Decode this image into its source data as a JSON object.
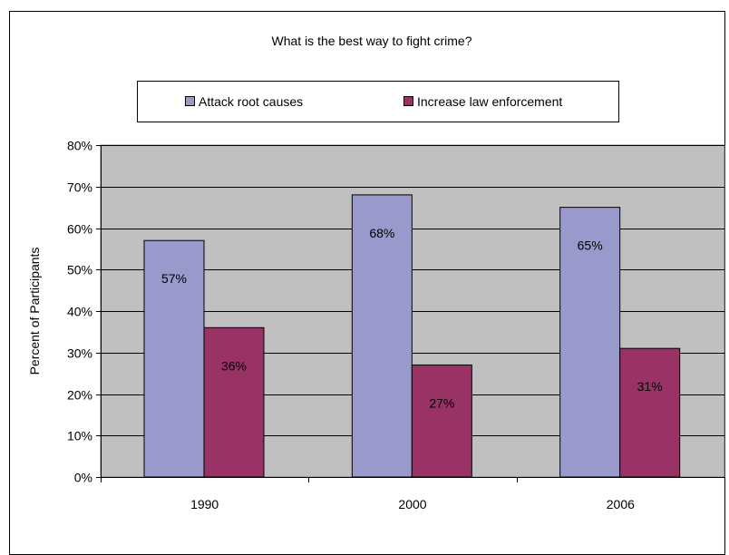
{
  "chart_data": {
    "type": "bar",
    "title": "What is the best way to fight crime?",
    "xlabel": "",
    "ylabel": "Percent of Participants",
    "categories": [
      "1990",
      "2000",
      "2006"
    ],
    "series": [
      {
        "name": "Attack root causes",
        "values": [
          57,
          68,
          65
        ],
        "labels": [
          "57%",
          "68%",
          "65%"
        ],
        "color": "#9999cc"
      },
      {
        "name": "Increase law enforcement",
        "values": [
          36,
          27,
          31
        ],
        "labels": [
          "36%",
          "27%",
          "31%"
        ],
        "color": "#993366"
      }
    ],
    "ylim": [
      0,
      80
    ],
    "yticks": [
      "0%",
      "10%",
      "20%",
      "30%",
      "40%",
      "50%",
      "60%",
      "70%",
      "80%"
    ],
    "grid": true,
    "plot_background": "#c0c0c0",
    "legend_position": "top"
  }
}
